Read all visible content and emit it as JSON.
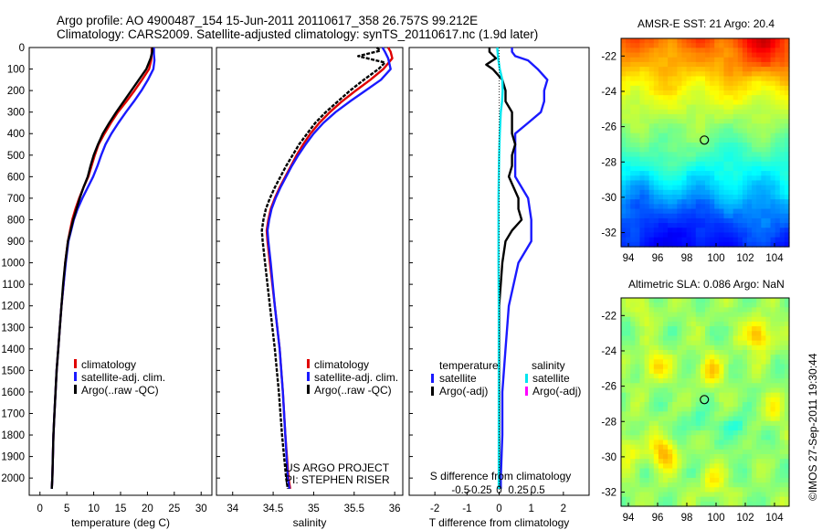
{
  "header": {
    "line1": "Argo profile: AO 4900487_154 15-Jun-2011 20110617_358 26.757S 99.212E",
    "line2": "Climatology: CARS2009. Satellite-adjusted climatology: synTS_20110617.nc (1.9d later)"
  },
  "stamp": "©IMOS 27-Sep-2011 19:30:44",
  "colors": {
    "climatology": "#e00000",
    "satellite": "#1a1aff",
    "argo": "#000000",
    "sal_satellite": "#00e5ee",
    "sal_argo": "#ff00ff"
  },
  "chart_data": [
    {
      "id": "temperature",
      "type": "line",
      "xlabel": "temperature (deg C)",
      "ylabel": "",
      "xlim": [
        -2,
        32
      ],
      "ylim": [
        0,
        2080
      ],
      "x_ticks": [
        0,
        5,
        10,
        15,
        20,
        25,
        30
      ],
      "y_ticks": [
        0,
        100,
        200,
        300,
        400,
        500,
        600,
        700,
        800,
        900,
        1000,
        1100,
        1200,
        1300,
        1400,
        1500,
        1600,
        1700,
        1800,
        1900,
        2000
      ],
      "legend": {
        "position": "lower-middle",
        "entries": [
          "climatology",
          "satellite-adj. clim.",
          "Argo(..raw -QC)"
        ]
      },
      "series": [
        {
          "name": "climatology",
          "color": "#e00000",
          "depth": [
            0,
            30,
            60,
            100,
            150,
            200,
            250,
            300,
            350,
            400,
            450,
            500,
            550,
            600,
            650,
            700,
            750,
            800,
            850,
            900,
            1000,
            1100,
            1200,
            1300,
            1400,
            1500,
            1600,
            1700,
            1800,
            1900,
            2000,
            2050
          ],
          "values": [
            20.8,
            20.8,
            20.7,
            20.3,
            19.0,
            17.6,
            16.1,
            14.5,
            13.2,
            12.0,
            10.9,
            10.2,
            9.6,
            9.0,
            8.1,
            7.3,
            6.6,
            6.0,
            5.6,
            5.2,
            4.7,
            4.4,
            4.0,
            3.7,
            3.4,
            3.1,
            2.9,
            2.7,
            2.5,
            2.4,
            2.3,
            2.2
          ]
        },
        {
          "name": "satellite-adj. clim.",
          "color": "#1a1aff",
          "depth": [
            0,
            30,
            60,
            100,
            150,
            200,
            250,
            300,
            350,
            400,
            450,
            500,
            550,
            600,
            650,
            700,
            750,
            800,
            850,
            900,
            1000,
            1100,
            1200,
            1300,
            1400,
            1500,
            1600,
            1700,
            1800,
            1900,
            2000,
            2050
          ],
          "values": [
            21.2,
            21.2,
            21.3,
            21.1,
            20.1,
            18.9,
            17.5,
            16.0,
            14.6,
            13.3,
            12.2,
            11.4,
            10.7,
            9.9,
            8.9,
            7.9,
            7.0,
            6.3,
            5.8,
            5.3,
            4.8,
            4.4,
            4.0,
            3.7,
            3.4,
            3.1,
            2.9,
            2.7,
            2.5,
            2.4,
            2.3,
            2.2
          ]
        },
        {
          "name": "Argo(..raw -QC)",
          "color": "#000000",
          "depth": [
            0,
            20,
            50,
            100,
            150,
            200,
            250,
            300,
            350,
            400,
            450,
            500,
            550,
            600,
            650,
            700,
            750,
            800,
            850,
            900,
            1000,
            1100,
            1200,
            1300,
            1400,
            1500,
            1600,
            1700,
            1800,
            1900,
            2000,
            2050
          ],
          "values": [
            20.9,
            20.9,
            20.6,
            19.8,
            18.4,
            17.0,
            15.6,
            14.2,
            12.9,
            11.7,
            10.8,
            10.0,
            9.4,
            8.9,
            8.1,
            7.4,
            6.8,
            6.2,
            5.7,
            5.2,
            4.7,
            4.3,
            4.0,
            3.7,
            3.4,
            3.1,
            2.9,
            2.7,
            2.5,
            2.4,
            2.3,
            2.2
          ]
        }
      ]
    },
    {
      "id": "salinity",
      "type": "line",
      "xlabel": "salinity",
      "ylabel": "",
      "xlim": [
        33.8,
        36.1
      ],
      "ylim": [
        0,
        2080
      ],
      "x_ticks": [
        34,
        34.5,
        35,
        35.5,
        36
      ],
      "legend": {
        "position": "lower-middle",
        "entries": [
          "climatology",
          "satellite-adj. clim.",
          "Argo(..raw -QC)"
        ]
      },
      "annotation": [
        "US ARGO PROJECT",
        "PI: STEPHEN RISER"
      ],
      "series": [
        {
          "name": "climatology",
          "color": "#e00000",
          "depth": [
            0,
            20,
            50,
            100,
            150,
            200,
            250,
            300,
            350,
            400,
            450,
            500,
            550,
            600,
            650,
            700,
            750,
            800,
            850,
            900,
            1000,
            1200,
            1400,
            1600,
            1800,
            2000,
            2050
          ],
          "values": [
            35.92,
            35.95,
            35.97,
            35.86,
            35.7,
            35.52,
            35.35,
            35.2,
            35.07,
            34.96,
            34.87,
            34.79,
            34.72,
            34.65,
            34.58,
            34.52,
            34.47,
            34.44,
            34.42,
            34.43,
            34.46,
            34.52,
            34.58,
            34.62,
            34.65,
            34.69,
            34.71
          ]
        },
        {
          "name": "satellite-adj. clim.",
          "color": "#1a1aff",
          "depth": [
            0,
            20,
            50,
            100,
            150,
            200,
            250,
            300,
            350,
            400,
            450,
            500,
            550,
            600,
            650,
            700,
            750,
            800,
            850,
            900,
            1000,
            1200,
            1400,
            1600,
            1800,
            2000,
            2050
          ],
          "values": [
            35.85,
            35.88,
            35.92,
            35.95,
            35.83,
            35.64,
            35.45,
            35.27,
            35.12,
            35.0,
            34.9,
            34.81,
            34.73,
            34.66,
            34.59,
            34.53,
            34.48,
            34.45,
            34.43,
            34.44,
            34.47,
            34.52,
            34.58,
            34.62,
            34.65,
            34.68,
            34.7
          ]
        },
        {
          "name": "Argo(..raw -QC)",
          "color": "#000000",
          "depth": [
            0,
            15,
            40,
            70,
            100,
            150,
            200,
            250,
            300,
            350,
            400,
            450,
            500,
            550,
            600,
            650,
            700,
            750,
            800,
            850,
            900,
            1000,
            1200,
            1400,
            1600,
            1800,
            2000,
            2050
          ],
          "values": [
            35.78,
            35.82,
            35.55,
            35.88,
            35.8,
            35.62,
            35.45,
            35.3,
            35.15,
            35.02,
            34.92,
            34.82,
            34.74,
            34.66,
            34.59,
            34.52,
            34.46,
            34.41,
            34.38,
            34.36,
            34.37,
            34.4,
            34.46,
            34.52,
            34.57,
            34.61,
            34.66,
            34.68
          ]
        }
      ]
    },
    {
      "id": "difference",
      "type": "line",
      "xlabel": "T difference from climatology",
      "xlabel_top": "S difference from climatology",
      "xlim": [
        -2.8,
        2.8
      ],
      "ylim": [
        0,
        2080
      ],
      "x_ticks": [
        -2,
        -1,
        0,
        1,
        2
      ],
      "s_ticks": [
        "-0.5",
        "-0.25",
        "0",
        "0.25",
        "0.5"
      ],
      "legend": {
        "position": "center",
        "temperature_title": "temperature",
        "salinity_title": "salinity",
        "temperature_entries": [
          "satellite",
          "Argo(-adj)"
        ],
        "salinity_entries": [
          "satellite",
          "Argo(-adj)"
        ]
      },
      "series": [
        {
          "name": "satellite",
          "group": "temperature",
          "color": "#1a1aff",
          "depth": [
            0,
            20,
            40,
            60,
            100,
            150,
            200,
            250,
            300,
            350,
            400,
            450,
            500,
            550,
            600,
            700,
            800,
            900,
            1000,
            1200,
            1400,
            1600,
            1800,
            2000,
            2050
          ],
          "values": [
            0.4,
            0.4,
            0.5,
            0.9,
            1.2,
            1.5,
            1.4,
            1.4,
            1.3,
            0.9,
            0.5,
            0.5,
            0.5,
            0.5,
            0.5,
            0.9,
            1.0,
            1.0,
            0.6,
            0.3,
            0.2,
            0.1,
            0.1,
            0.05,
            0.05
          ]
        },
        {
          "name": "Argo(-adj)",
          "group": "temperature",
          "color": "#000000",
          "depth": [
            0,
            20,
            50,
            80,
            100,
            150,
            200,
            250,
            300,
            350,
            400,
            450,
            500,
            550,
            600,
            700,
            750,
            800,
            850,
            900,
            1000,
            1200,
            1400,
            1600,
            1800,
            2000,
            2050
          ],
          "values": [
            -0.3,
            -0.3,
            -0.1,
            -0.4,
            -0.2,
            0.1,
            0.2,
            0.2,
            0.4,
            0.4,
            0.4,
            0.5,
            0.4,
            0.4,
            0.3,
            0.6,
            0.6,
            0.7,
            0.4,
            0.2,
            0.1,
            0.0,
            0.0,
            0.0,
            0.0,
            0.0,
            0.0
          ]
        },
        {
          "name": "satellite",
          "group": "salinity",
          "color": "#00e5ee",
          "depth": [
            0,
            50,
            100,
            150,
            200,
            250,
            300,
            400,
            500,
            600,
            700,
            800,
            900,
            1000,
            1200,
            1400,
            1600,
            1800,
            2000,
            2050
          ],
          "values": [
            -0.06,
            -0.03,
            0.02,
            0.1,
            0.11,
            0.09,
            0.05,
            0.02,
            0.0,
            -0.01,
            -0.02,
            -0.02,
            -0.02,
            -0.02,
            -0.01,
            -0.01,
            -0.01,
            -0.01,
            -0.01,
            -0.01
          ]
        }
      ]
    },
    {
      "id": "sst-map",
      "type": "heatmap",
      "title": "AMSR-E SST: 21 Argo: 20.4",
      "x_ticks": [
        94,
        96,
        98,
        100,
        102,
        104
      ],
      "y_ticks": [
        -22,
        -24,
        -26,
        -28,
        -30,
        -32
      ],
      "xlim": [
        93.5,
        105
      ],
      "ylim": [
        -32.8,
        -21
      ],
      "marker": {
        "lon": 99.2,
        "lat": -26.76
      }
    },
    {
      "id": "sla-map",
      "type": "heatmap",
      "title": "Altimetric SLA: 0.086 Argo: NaN",
      "x_ticks": [
        94,
        96,
        98,
        100,
        102,
        104
      ],
      "y_ticks": [
        -22,
        -24,
        -26,
        -28,
        -30,
        -32
      ],
      "xlim": [
        93.5,
        105
      ],
      "ylim": [
        -32.8,
        -21
      ],
      "marker": {
        "lon": 99.2,
        "lat": -26.76
      }
    }
  ]
}
